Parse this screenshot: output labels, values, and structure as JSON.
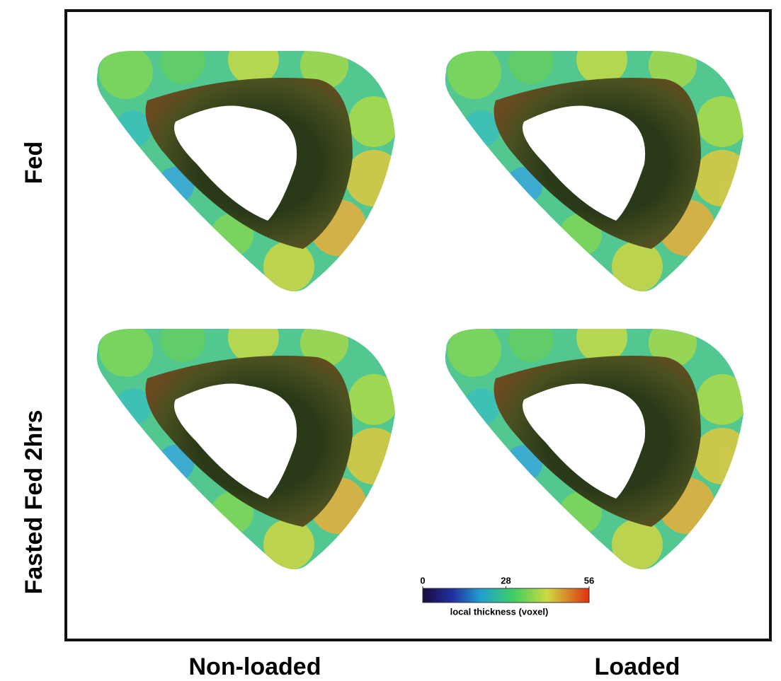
{
  "row_labels": [
    "Fed",
    "Fasted Fed 2hrs"
  ],
  "column_labels": [
    "Non-loaded",
    "Loaded"
  ],
  "colorbar": {
    "label": "local thickness (voxel)",
    "range": [
      0,
      56
    ],
    "ticks": [
      0,
      28,
      56
    ]
  }
}
